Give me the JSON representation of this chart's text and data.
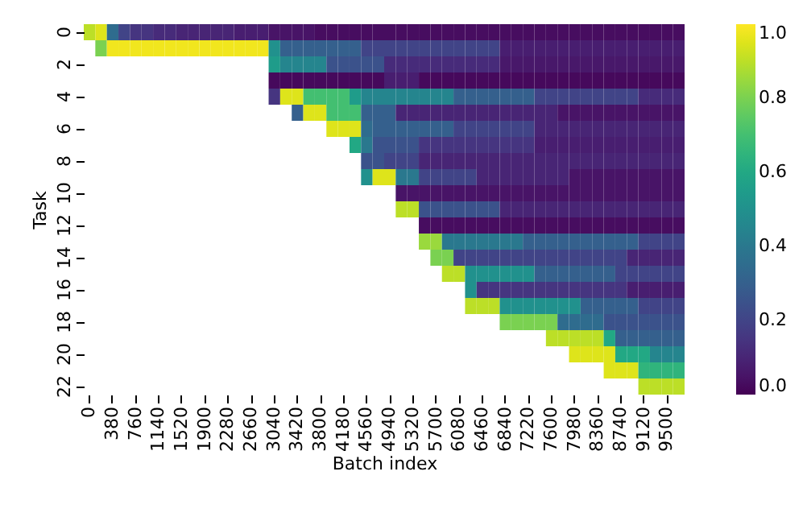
{
  "chart_data": {
    "type": "heatmap",
    "xlabel": "Batch index",
    "ylabel": "Task",
    "categories": [
      "0",
      null,
      "380",
      null,
      "760",
      null,
      "1140",
      null,
      "1520",
      null,
      "1900",
      null,
      "2280",
      null,
      "2660",
      null,
      "3040",
      null,
      "3420",
      null,
      "3800",
      null,
      "4180",
      null,
      "4560",
      null,
      "4940",
      null,
      "5320",
      null,
      "5700",
      null,
      "6080",
      null,
      "6460",
      null,
      "6840",
      null,
      "7220",
      null,
      "7600",
      null,
      "7980",
      null,
      "8360",
      null,
      "8740",
      null,
      "9120",
      null,
      "9500",
      null
    ],
    "y_categories": [
      "0",
      null,
      "2",
      null,
      "4",
      null,
      "6",
      null,
      "8",
      null,
      "10",
      null,
      "12",
      null,
      "14",
      null,
      "16",
      null,
      "18",
      null,
      "20",
      null,
      "22"
    ],
    "cells": [
      [
        0.9,
        0.95,
        0.35,
        0.2,
        0.15,
        0.15,
        0.12,
        0.12,
        0.1,
        0.1,
        0.1,
        0.1,
        0.1,
        0.08,
        0.08,
        0.08,
        0.05,
        0.05,
        0.05,
        0.05,
        0.03,
        0.03,
        0.03,
        0.03,
        0.03,
        0.03,
        0.03,
        0.03,
        0.03,
        0.03,
        0.03,
        0.03,
        0.03,
        0.03,
        0.03,
        0.03,
        0.03,
        0.03,
        0.03,
        0.03,
        0.03,
        0.03,
        0.03,
        0.03,
        0.03,
        0.03,
        0.03,
        0.03,
        0.03,
        0.03,
        0.03,
        0.03
      ],
      [
        null,
        0.8,
        0.98,
        0.98,
        0.98,
        0.98,
        0.98,
        0.98,
        0.98,
        0.98,
        0.98,
        0.98,
        0.98,
        0.98,
        0.98,
        0.98,
        0.5,
        0.3,
        0.3,
        0.3,
        0.3,
        0.3,
        0.3,
        0.3,
        0.2,
        0.2,
        0.2,
        0.2,
        0.2,
        0.2,
        0.2,
        0.2,
        0.2,
        0.2,
        0.2,
        0.2,
        0.08,
        0.08,
        0.08,
        0.08,
        0.08,
        0.08,
        0.08,
        0.08,
        0.08,
        0.08,
        0.08,
        0.08,
        0.08,
        0.08,
        0.08,
        0.08
      ],
      [
        null,
        null,
        null,
        null,
        null,
        null,
        null,
        null,
        null,
        null,
        null,
        null,
        null,
        null,
        null,
        null,
        0.55,
        0.45,
        0.45,
        0.45,
        0.45,
        0.25,
        0.25,
        0.25,
        0.25,
        0.25,
        0.12,
        0.12,
        0.12,
        0.12,
        0.12,
        0.12,
        0.12,
        0.12,
        0.12,
        0.12,
        0.06,
        0.06,
        0.06,
        0.06,
        0.06,
        0.06,
        0.06,
        0.06,
        0.06,
        0.06,
        0.06,
        0.06,
        0.06,
        0.06,
        0.06,
        0.06
      ],
      [
        null,
        null,
        null,
        null,
        null,
        null,
        null,
        null,
        null,
        null,
        null,
        null,
        null,
        null,
        null,
        null,
        0.02,
        0.02,
        0.02,
        0.02,
        0.02,
        0.02,
        0.02,
        0.02,
        0.02,
        0.02,
        0.08,
        0.08,
        0.08,
        0.02,
        0.02,
        0.02,
        0.02,
        0.02,
        0.02,
        0.02,
        0.02,
        0.02,
        0.02,
        0.02,
        0.02,
        0.02,
        0.02,
        0.02,
        0.02,
        0.02,
        0.02,
        0.02,
        0.02,
        0.02,
        0.02,
        0.02
      ],
      [
        null,
        null,
        null,
        null,
        null,
        null,
        null,
        null,
        null,
        null,
        null,
        null,
        null,
        null,
        null,
        null,
        0.15,
        0.95,
        0.95,
        0.7,
        0.7,
        0.7,
        0.7,
        0.55,
        0.45,
        0.45,
        0.45,
        0.45,
        0.45,
        0.45,
        0.45,
        0.45,
        0.3,
        0.3,
        0.3,
        0.3,
        0.3,
        0.3,
        0.3,
        0.2,
        0.2,
        0.2,
        0.2,
        0.2,
        0.2,
        0.2,
        0.2,
        0.2,
        0.12,
        0.12,
        0.12,
        0.12
      ],
      [
        null,
        null,
        null,
        null,
        null,
        null,
        null,
        null,
        null,
        null,
        null,
        null,
        null,
        null,
        null,
        null,
        null,
        null,
        0.3,
        0.95,
        0.95,
        0.7,
        0.7,
        0.7,
        0.3,
        0.3,
        0.3,
        0.1,
        0.1,
        0.1,
        0.1,
        0.1,
        0.1,
        0.1,
        0.1,
        0.1,
        0.1,
        0.1,
        0.1,
        0.1,
        0.1,
        0.05,
        0.05,
        0.05,
        0.05,
        0.05,
        0.05,
        0.05,
        0.05,
        0.05,
        0.05,
        0.05
      ],
      [
        null,
        null,
        null,
        null,
        null,
        null,
        null,
        null,
        null,
        null,
        null,
        null,
        null,
        null,
        null,
        null,
        null,
        null,
        null,
        null,
        null,
        0.95,
        0.95,
        0.95,
        0.35,
        0.3,
        0.3,
        0.3,
        0.3,
        0.3,
        0.3,
        0.3,
        0.2,
        0.2,
        0.2,
        0.2,
        0.2,
        0.2,
        0.2,
        0.1,
        0.1,
        0.1,
        0.1,
        0.1,
        0.1,
        0.1,
        0.1,
        0.1,
        0.1,
        0.1,
        0.1,
        0.1
      ],
      [
        null,
        null,
        null,
        null,
        null,
        null,
        null,
        null,
        null,
        null,
        null,
        null,
        null,
        null,
        null,
        null,
        null,
        null,
        null,
        null,
        null,
        null,
        null,
        0.6,
        0.4,
        0.25,
        0.25,
        0.25,
        0.25,
        0.15,
        0.15,
        0.15,
        0.15,
        0.15,
        0.15,
        0.15,
        0.15,
        0.15,
        0.15,
        0.08,
        0.08,
        0.08,
        0.08,
        0.08,
        0.08,
        0.08,
        0.08,
        0.08,
        0.08,
        0.08,
        0.08,
        0.08
      ],
      [
        null,
        null,
        null,
        null,
        null,
        null,
        null,
        null,
        null,
        null,
        null,
        null,
        null,
        null,
        null,
        null,
        null,
        null,
        null,
        null,
        null,
        null,
        null,
        null,
        0.25,
        0.25,
        0.2,
        0.2,
        0.2,
        0.1,
        0.1,
        0.1,
        0.1,
        0.1,
        0.1,
        0.1,
        0.1,
        0.1,
        0.1,
        0.1,
        0.1,
        0.1,
        0.1,
        0.1,
        0.1,
        0.1,
        0.1,
        0.1,
        0.1,
        0.1,
        0.1,
        0.1
      ],
      [
        null,
        null,
        null,
        null,
        null,
        null,
        null,
        null,
        null,
        null,
        null,
        null,
        null,
        null,
        null,
        null,
        null,
        null,
        null,
        null,
        null,
        null,
        null,
        null,
        0.5,
        0.95,
        0.95,
        0.4,
        0.4,
        0.2,
        0.2,
        0.2,
        0.2,
        0.2,
        0.1,
        0.1,
        0.1,
        0.1,
        0.1,
        0.1,
        0.1,
        0.1,
        0.05,
        0.05,
        0.05,
        0.05,
        0.05,
        0.05,
        0.05,
        0.05,
        0.05,
        0.05
      ],
      [
        null,
        null,
        null,
        null,
        null,
        null,
        null,
        null,
        null,
        null,
        null,
        null,
        null,
        null,
        null,
        null,
        null,
        null,
        null,
        null,
        null,
        null,
        null,
        null,
        null,
        null,
        null,
        0.05,
        0.05,
        0.05,
        0.05,
        0.05,
        0.05,
        0.05,
        0.05,
        0.05,
        0.05,
        0.05,
        0.05,
        0.05,
        0.05,
        0.05,
        0.05,
        0.05,
        0.05,
        0.05,
        0.05,
        0.05,
        0.05,
        0.05,
        0.05,
        0.05
      ],
      [
        null,
        null,
        null,
        null,
        null,
        null,
        null,
        null,
        null,
        null,
        null,
        null,
        null,
        null,
        null,
        null,
        null,
        null,
        null,
        null,
        null,
        null,
        null,
        null,
        null,
        null,
        null,
        0.9,
        0.9,
        0.25,
        0.25,
        0.25,
        0.25,
        0.25,
        0.25,
        0.25,
        0.1,
        0.1,
        0.1,
        0.1,
        0.1,
        0.1,
        0.1,
        0.1,
        0.1,
        0.1,
        0.1,
        0.1,
        0.1,
        0.1,
        0.1,
        0.1
      ],
      [
        null,
        null,
        null,
        null,
        null,
        null,
        null,
        null,
        null,
        null,
        null,
        null,
        null,
        null,
        null,
        null,
        null,
        null,
        null,
        null,
        null,
        null,
        null,
        null,
        null,
        null,
        null,
        null,
        null,
        0.03,
        0.03,
        0.03,
        0.03,
        0.03,
        0.03,
        0.03,
        0.03,
        0.03,
        0.03,
        0.03,
        0.03,
        0.03,
        0.03,
        0.03,
        0.03,
        0.03,
        0.03,
        0.03,
        0.03,
        0.03,
        0.03,
        0.03
      ],
      [
        null,
        null,
        null,
        null,
        null,
        null,
        null,
        null,
        null,
        null,
        null,
        null,
        null,
        null,
        null,
        null,
        null,
        null,
        null,
        null,
        null,
        null,
        null,
        null,
        null,
        null,
        null,
        null,
        null,
        0.85,
        0.85,
        0.4,
        0.4,
        0.4,
        0.4,
        0.4,
        0.4,
        0.4,
        0.3,
        0.3,
        0.3,
        0.3,
        0.3,
        0.3,
        0.3,
        0.3,
        0.3,
        0.3,
        0.2,
        0.2,
        0.2,
        0.2
      ],
      [
        null,
        null,
        null,
        null,
        null,
        null,
        null,
        null,
        null,
        null,
        null,
        null,
        null,
        null,
        null,
        null,
        null,
        null,
        null,
        null,
        null,
        null,
        null,
        null,
        null,
        null,
        null,
        null,
        null,
        null,
        0.8,
        0.8,
        0.2,
        0.2,
        0.2,
        0.2,
        0.2,
        0.2,
        0.2,
        0.2,
        0.2,
        0.2,
        0.2,
        0.2,
        0.2,
        0.2,
        0.2,
        0.1,
        0.1,
        0.1,
        0.1,
        0.1
      ],
      [
        null,
        null,
        null,
        null,
        null,
        null,
        null,
        null,
        null,
        null,
        null,
        null,
        null,
        null,
        null,
        null,
        null,
        null,
        null,
        null,
        null,
        null,
        null,
        null,
        null,
        null,
        null,
        null,
        null,
        null,
        null,
        0.9,
        0.9,
        0.5,
        0.5,
        0.5,
        0.5,
        0.5,
        0.5,
        0.3,
        0.3,
        0.3,
        0.3,
        0.3,
        0.3,
        0.3,
        0.2,
        0.2,
        0.2,
        0.2,
        0.2,
        0.2
      ],
      [
        null,
        null,
        null,
        null,
        null,
        null,
        null,
        null,
        null,
        null,
        null,
        null,
        null,
        null,
        null,
        null,
        null,
        null,
        null,
        null,
        null,
        null,
        null,
        null,
        null,
        null,
        null,
        null,
        null,
        null,
        null,
        null,
        null,
        0.5,
        0.15,
        0.15,
        0.15,
        0.15,
        0.15,
        0.15,
        0.15,
        0.15,
        0.15,
        0.15,
        0.15,
        0.15,
        0.15,
        0.08,
        0.08,
        0.08,
        0.08,
        0.08
      ],
      [
        null,
        null,
        null,
        null,
        null,
        null,
        null,
        null,
        null,
        null,
        null,
        null,
        null,
        null,
        null,
        null,
        null,
        null,
        null,
        null,
        null,
        null,
        null,
        null,
        null,
        null,
        null,
        null,
        null,
        null,
        null,
        null,
        null,
        0.9,
        0.9,
        0.9,
        0.5,
        0.5,
        0.5,
        0.5,
        0.5,
        0.5,
        0.5,
        0.3,
        0.3,
        0.3,
        0.3,
        0.3,
        0.2,
        0.2,
        0.2,
        0.2
      ],
      [
        null,
        null,
        null,
        null,
        null,
        null,
        null,
        null,
        null,
        null,
        null,
        null,
        null,
        null,
        null,
        null,
        null,
        null,
        null,
        null,
        null,
        null,
        null,
        null,
        null,
        null,
        null,
        null,
        null,
        null,
        null,
        null,
        null,
        null,
        null,
        null,
        0.8,
        0.8,
        0.8,
        0.8,
        0.8,
        0.35,
        0.35,
        0.35,
        0.35,
        0.25,
        0.25,
        0.25,
        0.25,
        0.25,
        0.25,
        0.25
      ],
      [
        null,
        null,
        null,
        null,
        null,
        null,
        null,
        null,
        null,
        null,
        null,
        null,
        null,
        null,
        null,
        null,
        null,
        null,
        null,
        null,
        null,
        null,
        null,
        null,
        null,
        null,
        null,
        null,
        null,
        null,
        null,
        null,
        null,
        null,
        null,
        null,
        null,
        null,
        null,
        null,
        0.9,
        0.9,
        0.9,
        0.9,
        0.9,
        0.6,
        0.3,
        0.3,
        0.3,
        0.3,
        0.3,
        0.3
      ],
      [
        null,
        null,
        null,
        null,
        null,
        null,
        null,
        null,
        null,
        null,
        null,
        null,
        null,
        null,
        null,
        null,
        null,
        null,
        null,
        null,
        null,
        null,
        null,
        null,
        null,
        null,
        null,
        null,
        null,
        null,
        null,
        null,
        null,
        null,
        null,
        null,
        null,
        null,
        null,
        null,
        null,
        null,
        0.95,
        0.95,
        0.95,
        0.95,
        0.6,
        0.6,
        0.6,
        0.45,
        0.45,
        0.45
      ],
      [
        null,
        null,
        null,
        null,
        null,
        null,
        null,
        null,
        null,
        null,
        null,
        null,
        null,
        null,
        null,
        null,
        null,
        null,
        null,
        null,
        null,
        null,
        null,
        null,
        null,
        null,
        null,
        null,
        null,
        null,
        null,
        null,
        null,
        null,
        null,
        null,
        null,
        null,
        null,
        null,
        null,
        null,
        null,
        null,
        null,
        0.95,
        0.95,
        0.95,
        0.65,
        0.65,
        0.65,
        0.65
      ],
      [
        null,
        null,
        null,
        null,
        null,
        null,
        null,
        null,
        null,
        null,
        null,
        null,
        null,
        null,
        null,
        null,
        null,
        null,
        null,
        null,
        null,
        null,
        null,
        null,
        null,
        null,
        null,
        null,
        null,
        null,
        null,
        null,
        null,
        null,
        null,
        null,
        null,
        null,
        null,
        null,
        null,
        null,
        null,
        null,
        null,
        null,
        null,
        null,
        0.9,
        0.9,
        0.9,
        0.9
      ]
    ],
    "clim": [
      0,
      1
    ],
    "cticks": [
      {
        "value": 0,
        "label": "0.0"
      },
      {
        "value": 0.2,
        "label": "0.2"
      },
      {
        "value": 0.4,
        "label": "0.4"
      },
      {
        "value": 0.6,
        "label": "0.6"
      },
      {
        "value": 0.8,
        "label": "0.8"
      },
      {
        "value": 1,
        "label": "1.0"
      }
    ]
  }
}
